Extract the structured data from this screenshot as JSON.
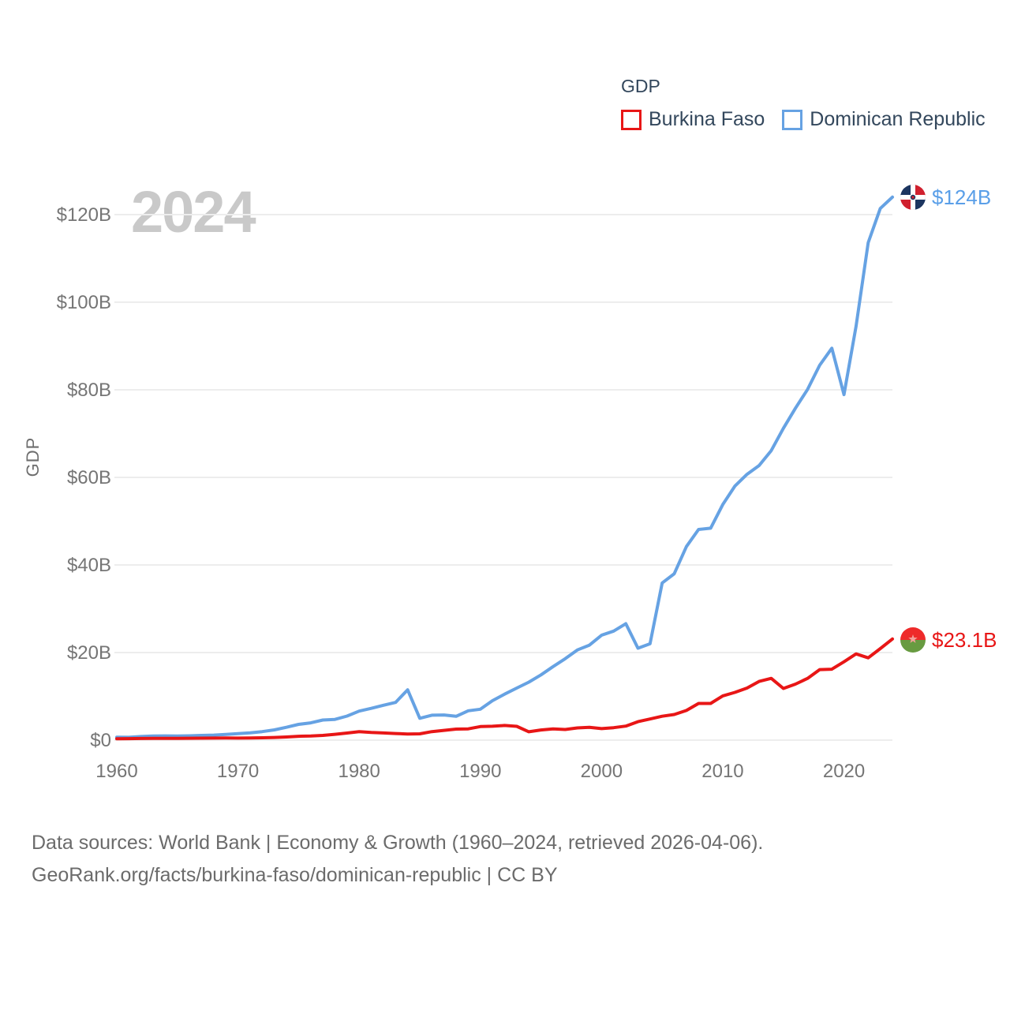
{
  "watermark": "2024",
  "legend": {
    "title": "GDP",
    "items": [
      {
        "label": "Burkina Faso",
        "color": "#e81616"
      },
      {
        "label": "Dominican Republic",
        "color": "#66a2e3"
      }
    ]
  },
  "y_axis_title": "GDP",
  "end_labels": {
    "dominican_republic": {
      "text": "$124B",
      "color": "#5a9fe8",
      "flag": "dominican-republic-flag"
    },
    "burkina_faso": {
      "text": "$23.1B",
      "color": "#e81616",
      "flag": "burkina-faso-flag"
    }
  },
  "footer": {
    "line1": "Data sources: World Bank | Economy & Growth (1960–2024, retrieved 2026-04-06).",
    "line2": "GeoRank.org/facts/burkina-faso/dominican-republic | CC BY"
  },
  "chart_data": {
    "type": "line",
    "title": "GDP",
    "xlabel": "",
    "ylabel": "GDP",
    "xlim": [
      1960,
      2024
    ],
    "ylim": [
      0,
      124
    ],
    "grid": "horizontal",
    "gridline_color": "#ededed",
    "tick_color": "#757575",
    "x_ticks": [
      1960,
      1970,
      1980,
      1990,
      2000,
      2010,
      2020
    ],
    "y_ticks": [
      "$0",
      "$20B",
      "$40B",
      "$60B",
      "$80B",
      "$100B",
      "$120B"
    ],
    "y_tick_values": [
      0,
      20,
      40,
      60,
      80,
      100,
      120
    ],
    "x": [
      1960,
      1961,
      1962,
      1963,
      1964,
      1965,
      1966,
      1967,
      1968,
      1969,
      1970,
      1971,
      1972,
      1973,
      1974,
      1975,
      1976,
      1977,
      1978,
      1979,
      1980,
      1981,
      1982,
      1983,
      1984,
      1985,
      1986,
      1987,
      1988,
      1989,
      1990,
      1991,
      1992,
      1993,
      1994,
      1995,
      1996,
      1997,
      1998,
      1999,
      2000,
      2001,
      2002,
      2003,
      2004,
      2005,
      2006,
      2007,
      2008,
      2009,
      2010,
      2011,
      2012,
      2013,
      2014,
      2015,
      2016,
      2017,
      2018,
      2019,
      2020,
      2021,
      2022,
      2023,
      2024
    ],
    "series": [
      {
        "name": "Dominican Republic",
        "color": "#66a2e3",
        "end_value_label": "$124B",
        "values": [
          0.67,
          0.64,
          0.83,
          0.93,
          0.98,
          0.96,
          1.0,
          1.08,
          1.16,
          1.32,
          1.49,
          1.67,
          1.94,
          2.35,
          2.93,
          3.6,
          3.95,
          4.59,
          4.73,
          5.5,
          6.63,
          7.27,
          7.97,
          8.62,
          11.5,
          5.0,
          5.7,
          5.75,
          5.45,
          6.7,
          7.07,
          9.0,
          10.5,
          11.9,
          13.25,
          14.9,
          16.8,
          18.6,
          20.6,
          21.7,
          23.97,
          24.9,
          26.6,
          21.0,
          22.0,
          35.9,
          38.0,
          44.2,
          48.1,
          48.4,
          53.8,
          58.0,
          60.7,
          62.7,
          66.1,
          71.2,
          75.8,
          80.1,
          85.6,
          89.5,
          78.9,
          94.5,
          113.6,
          121.4,
          124.0
        ]
      },
      {
        "name": "Burkina Faso",
        "color": "#e81616",
        "end_value_label": "$23.1B",
        "values": [
          0.33,
          0.35,
          0.37,
          0.39,
          0.41,
          0.42,
          0.44,
          0.45,
          0.47,
          0.49,
          0.46,
          0.49,
          0.54,
          0.61,
          0.72,
          0.88,
          0.94,
          1.09,
          1.34,
          1.62,
          1.93,
          1.75,
          1.64,
          1.52,
          1.41,
          1.45,
          1.95,
          2.23,
          2.53,
          2.58,
          3.1,
          3.18,
          3.35,
          3.15,
          1.91,
          2.32,
          2.56,
          2.44,
          2.79,
          2.94,
          2.63,
          2.84,
          3.2,
          4.21,
          4.83,
          5.46,
          5.85,
          6.77,
          8.37,
          8.37,
          10.1,
          10.9,
          11.9,
          13.4,
          14.1,
          11.8,
          12.8,
          14.1,
          16.1,
          16.2,
          17.9,
          19.7,
          18.8,
          20.9,
          23.1
        ]
      }
    ]
  }
}
